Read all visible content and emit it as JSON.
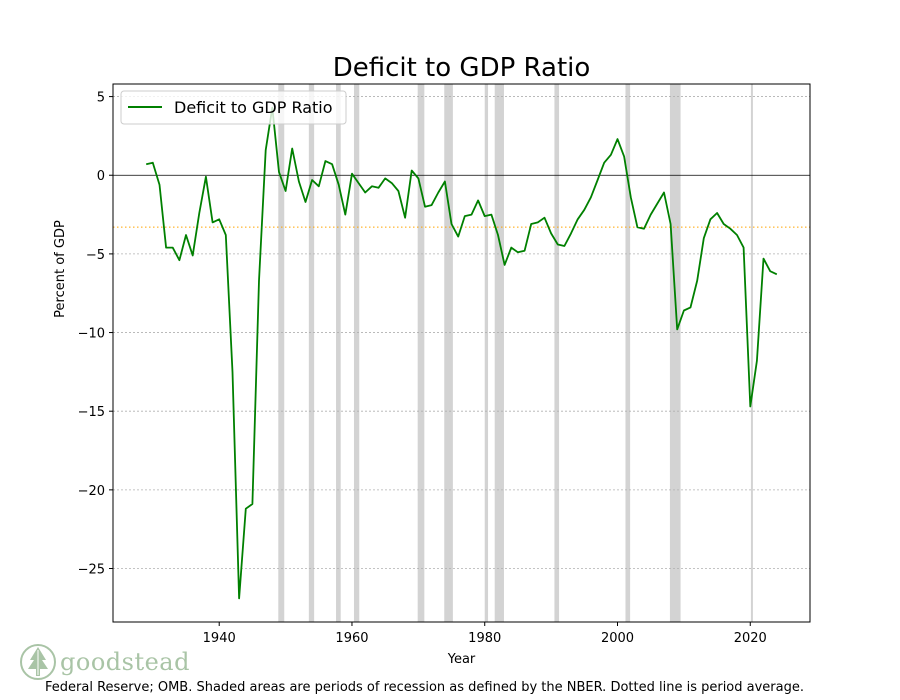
{
  "chart_data": {
    "type": "line",
    "title": "Deficit to GDP Ratio",
    "xlabel": "Year",
    "ylabel": "Percent of GDP",
    "xlim": [
      1924,
      2029
    ],
    "ylim": [
      -28.4,
      5.8
    ],
    "xticks": [
      1940,
      1960,
      1980,
      2000,
      2020
    ],
    "yticks": [
      5,
      0,
      -5,
      -10,
      -15,
      -20,
      -25
    ],
    "ytick_labels": [
      "5",
      "0",
      "−5",
      "−10",
      "−15",
      "−20",
      "−25"
    ],
    "grid": "horizontal dotted",
    "legend": "top-left",
    "series": [
      {
        "name": "Deficit to GDP Ratio",
        "color": "#008000",
        "x": [
          1929,
          1930,
          1931,
          1932,
          1933,
          1934,
          1935,
          1936,
          1937,
          1938,
          1939,
          1940,
          1941,
          1942,
          1943,
          1944,
          1945,
          1946,
          1947,
          1948,
          1949,
          1950,
          1951,
          1952,
          1953,
          1954,
          1955,
          1956,
          1957,
          1958,
          1959,
          1960,
          1961,
          1962,
          1963,
          1964,
          1965,
          1966,
          1967,
          1968,
          1969,
          1970,
          1971,
          1972,
          1973,
          1974,
          1975,
          1976,
          1977,
          1978,
          1979,
          1980,
          1981,
          1982,
          1983,
          1984,
          1985,
          1986,
          1987,
          1988,
          1989,
          1990,
          1991,
          1992,
          1993,
          1994,
          1995,
          1996,
          1997,
          1998,
          1999,
          2000,
          2001,
          2002,
          2003,
          2004,
          2005,
          2006,
          2007,
          2008,
          2009,
          2010,
          2011,
          2012,
          2013,
          2014,
          2015,
          2016,
          2017,
          2018,
          2019,
          2020,
          2021,
          2022,
          2023,
          2024
        ],
        "y": [
          0.7,
          0.8,
          -0.6,
          -4.6,
          -4.6,
          -5.4,
          -3.8,
          -5.1,
          -2.4,
          -0.1,
          -3.0,
          -2.8,
          -3.8,
          -12.5,
          -26.9,
          -21.2,
          -20.9,
          -6.7,
          1.6,
          4.3,
          0.2,
          -1.0,
          1.7,
          -0.4,
          -1.7,
          -0.3,
          -0.7,
          0.9,
          0.7,
          -0.6,
          -2.5,
          0.1,
          -0.5,
          -1.1,
          -0.7,
          -0.8,
          -0.2,
          -0.5,
          -1.0,
          -2.7,
          0.3,
          -0.2,
          -2.0,
          -1.9,
          -1.1,
          -0.4,
          -3.1,
          -3.9,
          -2.6,
          -2.5,
          -1.6,
          -2.6,
          -2.5,
          -3.8,
          -5.7,
          -4.6,
          -4.9,
          -4.8,
          -3.1,
          -3.0,
          -2.7,
          -3.7,
          -4.4,
          -4.5,
          -3.7,
          -2.8,
          -2.2,
          -1.4,
          -0.3,
          0.8,
          1.3,
          2.3,
          1.2,
          -1.4,
          -3.3,
          -3.4,
          -2.5,
          -1.8,
          -1.1,
          -3.1,
          -9.8,
          -8.6,
          -8.4,
          -6.7,
          -4.0,
          -2.8,
          -2.4,
          -3.1,
          -3.4,
          -3.8,
          -4.6,
          -14.7,
          -11.8,
          -5.3,
          -6.1,
          -6.3
        ]
      }
    ],
    "period_average": -3.3,
    "recessions": [
      [
        1948.9,
        1949.8
      ],
      [
        1953.5,
        1954.3
      ],
      [
        1957.6,
        1958.3
      ],
      [
        1960.3,
        1961.1
      ],
      [
        1969.9,
        1970.9
      ],
      [
        1973.9,
        1975.2
      ],
      [
        1980.0,
        1980.5
      ],
      [
        1981.5,
        1982.9
      ],
      [
        1990.5,
        1991.2
      ],
      [
        2001.2,
        2001.9
      ],
      [
        2007.9,
        2009.5
      ],
      [
        2020.1,
        2020.3
      ]
    ],
    "colors": {
      "line": "#008000",
      "recession": "#d3d3d3",
      "average": "#ffa500",
      "grid": "#b0b0b0",
      "zero_line": "#000000"
    }
  },
  "logo": {
    "text": "goodstead"
  },
  "footnote": "Federal Reserve; OMB. Shaded areas are periods of recession as defined by the NBER. Dotted line is period average."
}
